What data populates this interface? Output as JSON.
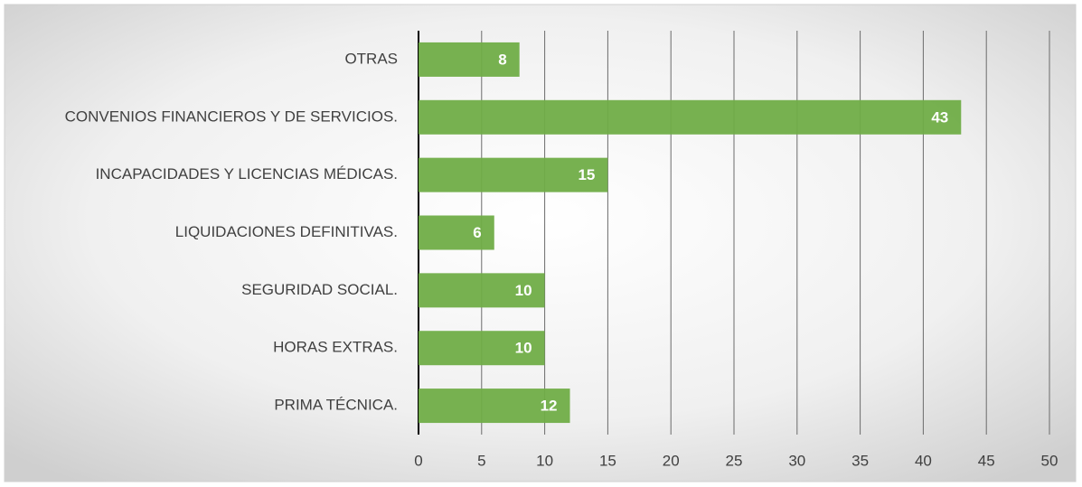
{
  "chart_data": {
    "type": "bar",
    "orientation": "horizontal",
    "categories": [
      "OTRAS",
      "CONVENIOS FINANCIEROS Y DE SERVICIOS.",
      "INCAPACIDADES Y LICENCIAS MÉDICAS.",
      "LIQUIDACIONES DEFINITIVAS.",
      "SEGURIDAD SOCIAL.",
      "HORAS EXTRAS.",
      "PRIMA TÉCNICA."
    ],
    "values": [
      8,
      43,
      15,
      6,
      10,
      10,
      12
    ],
    "color": "#70ad47",
    "xlim": [
      0,
      50
    ],
    "xticks": [
      0,
      5,
      10,
      15,
      20,
      25,
      30,
      35,
      40,
      45,
      50
    ],
    "grid": true
  }
}
